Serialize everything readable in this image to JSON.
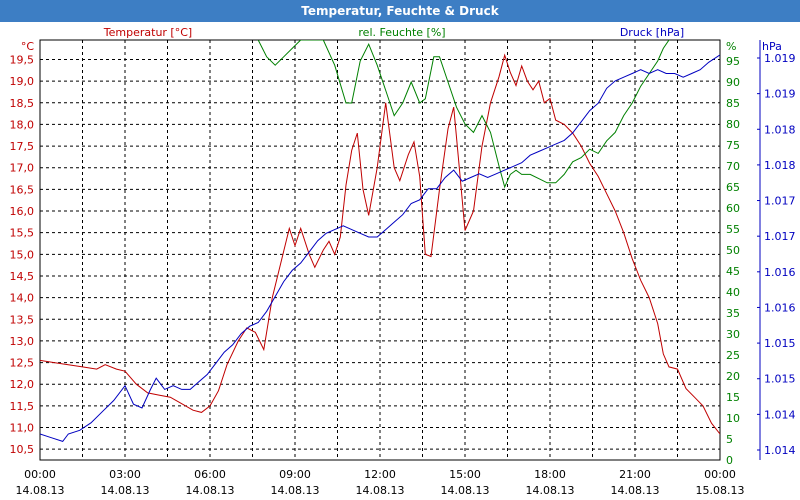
{
  "window": {
    "title": "Temperatur, Feuchte & Druck"
  },
  "colors": {
    "temperature": "#c00000",
    "humidity": "#008000",
    "pressure": "#0000c0",
    "grid": "#000000",
    "title_bar": "#3d7ec4"
  },
  "chart_data": {
    "type": "line",
    "title": "Temperatur, Feuchte & Druck",
    "grid": true,
    "x_axis": {
      "ticks": [
        {
          "time": "00:00",
          "date": "14.08.13"
        },
        {
          "time": "03:00",
          "date": "14.08.13"
        },
        {
          "time": "06:00",
          "date": "14.08.13"
        },
        {
          "time": "09:00",
          "date": "14.08.13"
        },
        {
          "time": "12:00",
          "date": "14.08.13"
        },
        {
          "time": "15:00",
          "date": "14.08.13"
        },
        {
          "time": "18:00",
          "date": "14.08.13"
        },
        {
          "time": "21:00",
          "date": "14.08.13"
        },
        {
          "time": "00:00",
          "date": "15.08.13"
        }
      ],
      "range_hours": [
        0,
        24
      ]
    },
    "y_axes": {
      "temperature": {
        "label": "Temperatur [°C]",
        "unit": "°C",
        "range": [
          10.25,
          19.95
        ],
        "ticks": [
          "10,5",
          "11,0",
          "11,5",
          "12,0",
          "12,5",
          "13,0",
          "13,5",
          "14,0",
          "14,5",
          "15,0",
          "15,5",
          "16,0",
          "16,5",
          "17,0",
          "17,5",
          "18,0",
          "18,5",
          "19,0",
          "19,5"
        ]
      },
      "humidity": {
        "label": "rel. Feuchte [%]",
        "unit": "%",
        "range": [
          0,
          100
        ],
        "ticks": [
          "0",
          "5",
          "10",
          "15",
          "20",
          "25",
          "30",
          "35",
          "40",
          "45",
          "50",
          "55",
          "60",
          "65",
          "70",
          "75",
          "80",
          "85",
          "90",
          "95"
        ]
      },
      "pressure": {
        "label": "Druck [hPa]",
        "unit": "hPa",
        "range": [
          1013.75,
          1019.4
        ],
        "ticks": [
          "1.014",
          "1.014",
          "1.015",
          "1.015",
          "1.016",
          "1.016",
          "1.017",
          "1.017",
          "1.018",
          "1.018",
          "1.019",
          "1.019"
        ]
      }
    },
    "series": [
      {
        "name": "Temperatur [°C]",
        "axis": "temperature",
        "points": [
          [
            0,
            12.55
          ],
          [
            0.5,
            12.5
          ],
          [
            1,
            12.45
          ],
          [
            1.5,
            12.4
          ],
          [
            2,
            12.35
          ],
          [
            2.3,
            12.45
          ],
          [
            2.7,
            12.35
          ],
          [
            3,
            12.3
          ],
          [
            3.4,
            12.0
          ],
          [
            3.8,
            11.8
          ],
          [
            4.2,
            11.75
          ],
          [
            4.6,
            11.7
          ],
          [
            5,
            11.55
          ],
          [
            5.4,
            11.4
          ],
          [
            5.7,
            11.35
          ],
          [
            6,
            11.5
          ],
          [
            6.3,
            11.85
          ],
          [
            6.6,
            12.45
          ],
          [
            7,
            13.0
          ],
          [
            7.3,
            13.3
          ],
          [
            7.6,
            13.2
          ],
          [
            7.9,
            12.8
          ],
          [
            8.2,
            14.0
          ],
          [
            8.5,
            14.8
          ],
          [
            8.8,
            15.6
          ],
          [
            9,
            15.2
          ],
          [
            9.2,
            15.6
          ],
          [
            9.5,
            15.0
          ],
          [
            9.7,
            14.7
          ],
          [
            10,
            15.1
          ],
          [
            10.2,
            15.3
          ],
          [
            10.4,
            15.0
          ],
          [
            10.6,
            15.4
          ],
          [
            10.8,
            16.6
          ],
          [
            11,
            17.4
          ],
          [
            11.2,
            17.8
          ],
          [
            11.4,
            16.5
          ],
          [
            11.6,
            15.9
          ],
          [
            11.9,
            17.0
          ],
          [
            12.2,
            18.5
          ],
          [
            12.5,
            17.0
          ],
          [
            12.7,
            16.7
          ],
          [
            13,
            17.3
          ],
          [
            13.2,
            17.6
          ],
          [
            13.4,
            16.8
          ],
          [
            13.6,
            15.0
          ],
          [
            13.8,
            14.95
          ],
          [
            14.1,
            16.5
          ],
          [
            14.4,
            17.9
          ],
          [
            14.6,
            18.4
          ],
          [
            14.8,
            17.0
          ],
          [
            15,
            15.55
          ],
          [
            15.3,
            16.0
          ],
          [
            15.6,
            17.5
          ],
          [
            15.9,
            18.5
          ],
          [
            16.2,
            19.1
          ],
          [
            16.4,
            19.6
          ],
          [
            16.6,
            19.2
          ],
          [
            16.8,
            18.9
          ],
          [
            17,
            19.35
          ],
          [
            17.2,
            19.0
          ],
          [
            17.4,
            18.8
          ],
          [
            17.6,
            19.0
          ],
          [
            17.8,
            18.5
          ],
          [
            18,
            18.6
          ],
          [
            18.2,
            18.1
          ],
          [
            18.5,
            18.0
          ],
          [
            18.8,
            17.8
          ],
          [
            19.1,
            17.5
          ],
          [
            19.4,
            17.1
          ],
          [
            19.7,
            16.8
          ],
          [
            20,
            16.4
          ],
          [
            20.3,
            16.0
          ],
          [
            20.6,
            15.5
          ],
          [
            20.9,
            14.9
          ],
          [
            21.2,
            14.4
          ],
          [
            21.5,
            14.0
          ],
          [
            21.8,
            13.4
          ],
          [
            22,
            12.7
          ],
          [
            22.2,
            12.4
          ],
          [
            22.5,
            12.35
          ],
          [
            22.8,
            11.9
          ],
          [
            23.1,
            11.7
          ],
          [
            23.4,
            11.5
          ],
          [
            23.7,
            11.1
          ],
          [
            24,
            10.85
          ]
        ]
      },
      {
        "name": "rel. Feuchte [%]",
        "axis": "humidity",
        "points": [
          [
            7.7,
            100
          ],
          [
            8,
            96
          ],
          [
            8.3,
            94
          ],
          [
            8.6,
            96
          ],
          [
            8.9,
            98
          ],
          [
            9.2,
            100
          ],
          [
            10,
            100
          ],
          [
            10.4,
            94
          ],
          [
            10.8,
            85
          ],
          [
            11,
            85
          ],
          [
            11.3,
            95
          ],
          [
            11.6,
            99
          ],
          [
            11.9,
            94
          ],
          [
            12.2,
            88
          ],
          [
            12.5,
            82
          ],
          [
            12.8,
            85
          ],
          [
            13.1,
            90
          ],
          [
            13.4,
            85
          ],
          [
            13.6,
            86
          ],
          [
            13.9,
            96
          ],
          [
            14.1,
            96
          ],
          [
            14.4,
            90
          ],
          [
            14.7,
            84
          ],
          [
            15,
            80
          ],
          [
            15.3,
            78
          ],
          [
            15.6,
            82
          ],
          [
            15.9,
            78
          ],
          [
            16.2,
            70
          ],
          [
            16.4,
            65
          ],
          [
            16.6,
            68
          ],
          [
            16.8,
            69
          ],
          [
            17,
            68
          ],
          [
            17.3,
            68
          ],
          [
            17.6,
            67
          ],
          [
            17.9,
            66
          ],
          [
            18.2,
            66
          ],
          [
            18.5,
            68
          ],
          [
            18.8,
            71
          ],
          [
            19.1,
            72
          ],
          [
            19.4,
            74
          ],
          [
            19.7,
            73
          ],
          [
            20,
            76
          ],
          [
            20.3,
            78
          ],
          [
            20.6,
            82
          ],
          [
            20.9,
            85
          ],
          [
            21.2,
            89
          ],
          [
            21.5,
            92
          ],
          [
            21.8,
            95
          ],
          [
            22,
            98
          ],
          [
            22.2,
            100
          ]
        ]
      },
      {
        "name": "Druck [hPa]",
        "axis": "pressure",
        "points": [
          [
            0,
            1014.1
          ],
          [
            0.4,
            1014.05
          ],
          [
            0.8,
            1014.0
          ],
          [
            1,
            1014.1
          ],
          [
            1.4,
            1014.15
          ],
          [
            1.8,
            1014.25
          ],
          [
            2.2,
            1014.4
          ],
          [
            2.6,
            1014.55
          ],
          [
            3,
            1014.75
          ],
          [
            3.3,
            1014.5
          ],
          [
            3.6,
            1014.45
          ],
          [
            3.9,
            1014.7
          ],
          [
            4.1,
            1014.85
          ],
          [
            4.4,
            1014.7
          ],
          [
            4.7,
            1014.75
          ],
          [
            5,
            1014.7
          ],
          [
            5.3,
            1014.7
          ],
          [
            5.6,
            1014.8
          ],
          [
            5.9,
            1014.9
          ],
          [
            6.2,
            1015.05
          ],
          [
            6.5,
            1015.2
          ],
          [
            6.8,
            1015.3
          ],
          [
            7.1,
            1015.45
          ],
          [
            7.4,
            1015.55
          ],
          [
            7.7,
            1015.6
          ],
          [
            8,
            1015.75
          ],
          [
            8.3,
            1015.95
          ],
          [
            8.6,
            1016.15
          ],
          [
            8.9,
            1016.3
          ],
          [
            9.2,
            1016.4
          ],
          [
            9.5,
            1016.55
          ],
          [
            9.8,
            1016.7
          ],
          [
            10.1,
            1016.8
          ],
          [
            10.4,
            1016.85
          ],
          [
            10.7,
            1016.9
          ],
          [
            11,
            1016.85
          ],
          [
            11.3,
            1016.8
          ],
          [
            11.6,
            1016.75
          ],
          [
            11.9,
            1016.75
          ],
          [
            12.2,
            1016.85
          ],
          [
            12.5,
            1016.95
          ],
          [
            12.8,
            1017.05
          ],
          [
            13.1,
            1017.2
          ],
          [
            13.4,
            1017.25
          ],
          [
            13.7,
            1017.4
          ],
          [
            14,
            1017.4
          ],
          [
            14.3,
            1017.55
          ],
          [
            14.6,
            1017.65
          ],
          [
            14.9,
            1017.5
          ],
          [
            15.2,
            1017.55
          ],
          [
            15.5,
            1017.6
          ],
          [
            15.8,
            1017.55
          ],
          [
            16.1,
            1017.6
          ],
          [
            16.4,
            1017.65
          ],
          [
            16.7,
            1017.7
          ],
          [
            17,
            1017.75
          ],
          [
            17.3,
            1017.85
          ],
          [
            17.6,
            1017.9
          ],
          [
            17.9,
            1017.95
          ],
          [
            18.2,
            1018.0
          ],
          [
            18.5,
            1018.05
          ],
          [
            18.8,
            1018.15
          ],
          [
            19.1,
            1018.3
          ],
          [
            19.4,
            1018.45
          ],
          [
            19.7,
            1018.55
          ],
          [
            20,
            1018.75
          ],
          [
            20.3,
            1018.85
          ],
          [
            20.6,
            1018.9
          ],
          [
            20.9,
            1018.95
          ],
          [
            21.2,
            1019.0
          ],
          [
            21.5,
            1018.95
          ],
          [
            21.8,
            1019.0
          ],
          [
            22.1,
            1018.95
          ],
          [
            22.4,
            1018.95
          ],
          [
            22.7,
            1018.9
          ],
          [
            23,
            1018.95
          ],
          [
            23.3,
            1019.0
          ],
          [
            23.6,
            1019.1
          ],
          [
            24,
            1019.2
          ]
        ]
      }
    ]
  }
}
